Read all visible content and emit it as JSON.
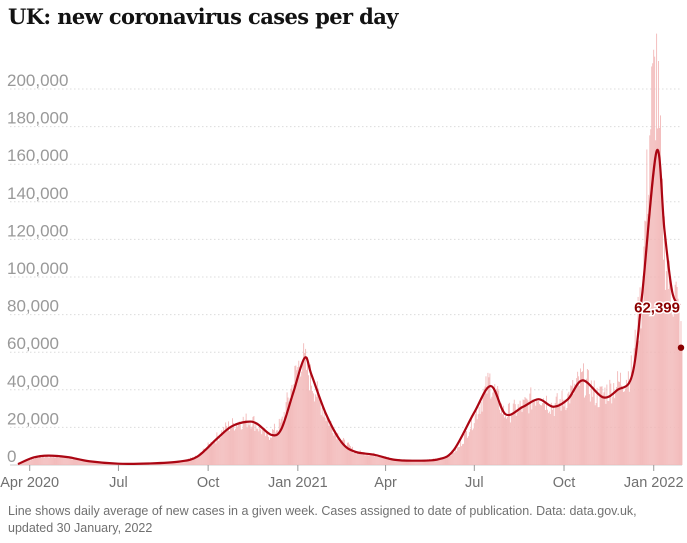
{
  "title": "UK: new coronavirus cases per day",
  "footnote": "Line shows daily average of new cases in a given week. Cases assigned to date of publication. Data: data.gov.uk, updated 30 January, 2022",
  "colors": {
    "bars": "#f2b8b8",
    "line": "#ab0613",
    "gridline": "#dcdcdc",
    "callout": "#8b0000"
  },
  "chart_data": {
    "type": "bar",
    "title": "UK: new coronavirus cases per day",
    "xlabel": "",
    "ylabel": "",
    "ylim": [
      0,
      200000
    ],
    "y_ticks": [
      0,
      20000,
      40000,
      60000,
      80000,
      100000,
      120000,
      140000,
      160000,
      180000,
      200000
    ],
    "y_tick_labels": [
      "0",
      "20,000",
      "40,000",
      "60,000",
      "80,000",
      "100,000",
      "120,000",
      "140,000",
      "160,000",
      "180,000",
      "200,000"
    ],
    "x_range": [
      "2020-03-20",
      "2022-01-30"
    ],
    "x_ticks": [
      {
        "date": "2020-04-01",
        "label": "Apr 2020"
      },
      {
        "date": "2020-07-01",
        "label": "Jul"
      },
      {
        "date": "2020-10-01",
        "label": "Oct"
      },
      {
        "date": "2021-01-01",
        "label": "Jan 2021"
      },
      {
        "date": "2021-04-01",
        "label": "Apr"
      },
      {
        "date": "2021-07-01",
        "label": "Jul"
      },
      {
        "date": "2021-10-01",
        "label": "Oct"
      },
      {
        "date": "2022-01-01",
        "label": "Jan 2022"
      }
    ],
    "grid": true,
    "series": [
      {
        "type": "bar",
        "frequency": "daily",
        "anchors": [
          {
            "date": "2020-03-20",
            "value": 700
          },
          {
            "date": "2020-04-10",
            "value": 4500
          },
          {
            "date": "2020-05-05",
            "value": 4500
          },
          {
            "date": "2020-06-10",
            "value": 1300
          },
          {
            "date": "2020-07-10",
            "value": 600
          },
          {
            "date": "2020-08-15",
            "value": 1000
          },
          {
            "date": "2020-09-05",
            "value": 2000
          },
          {
            "date": "2020-09-20",
            "value": 4500
          },
          {
            "date": "2020-10-05",
            "value": 12000
          },
          {
            "date": "2020-10-20",
            "value": 20000
          },
          {
            "date": "2020-11-01",
            "value": 23000
          },
          {
            "date": "2020-11-15",
            "value": 24000
          },
          {
            "date": "2020-12-01",
            "value": 15000
          },
          {
            "date": "2020-12-15",
            "value": 22000
          },
          {
            "date": "2020-12-28",
            "value": 45000
          },
          {
            "date": "2021-01-05",
            "value": 58000
          },
          {
            "date": "2021-01-15",
            "value": 45000
          },
          {
            "date": "2021-01-30",
            "value": 26000
          },
          {
            "date": "2021-02-15",
            "value": 13000
          },
          {
            "date": "2021-03-01",
            "value": 7000
          },
          {
            "date": "2021-03-20",
            "value": 5500
          },
          {
            "date": "2021-04-10",
            "value": 3000
          },
          {
            "date": "2021-05-10",
            "value": 2200
          },
          {
            "date": "2021-06-01",
            "value": 4000
          },
          {
            "date": "2021-06-15",
            "value": 9000
          },
          {
            "date": "2021-07-01",
            "value": 25000
          },
          {
            "date": "2021-07-17",
            "value": 45000
          },
          {
            "date": "2021-08-01",
            "value": 27000
          },
          {
            "date": "2021-08-20",
            "value": 31000
          },
          {
            "date": "2021-09-05",
            "value": 38000
          },
          {
            "date": "2021-09-20",
            "value": 31000
          },
          {
            "date": "2021-10-05",
            "value": 36000
          },
          {
            "date": "2021-10-20",
            "value": 46000
          },
          {
            "date": "2021-11-05",
            "value": 36000
          },
          {
            "date": "2021-11-25",
            "value": 43000
          },
          {
            "date": "2021-12-10",
            "value": 50000
          },
          {
            "date": "2021-12-20",
            "value": 92000
          },
          {
            "date": "2021-12-29",
            "value": 185000
          },
          {
            "date": "2022-01-04",
            "value": 210000
          },
          {
            "date": "2022-01-10",
            "value": 130000
          },
          {
            "date": "2022-01-17",
            "value": 95000
          },
          {
            "date": "2022-01-24",
            "value": 90000
          },
          {
            "date": "2022-01-30",
            "value": 62399
          }
        ]
      },
      {
        "type": "line",
        "frequency": "weekly average",
        "points": [
          {
            "date": "2020-03-20",
            "value": 500
          },
          {
            "date": "2020-04-05",
            "value": 4000
          },
          {
            "date": "2020-04-20",
            "value": 5000
          },
          {
            "date": "2020-05-10",
            "value": 4200
          },
          {
            "date": "2020-06-01",
            "value": 2000
          },
          {
            "date": "2020-07-01",
            "value": 700
          },
          {
            "date": "2020-08-01",
            "value": 800
          },
          {
            "date": "2020-09-01",
            "value": 1800
          },
          {
            "date": "2020-09-20",
            "value": 4500
          },
          {
            "date": "2020-10-10",
            "value": 14000
          },
          {
            "date": "2020-10-25",
            "value": 20500
          },
          {
            "date": "2020-11-10",
            "value": 23000
          },
          {
            "date": "2020-11-20",
            "value": 22000
          },
          {
            "date": "2020-12-05",
            "value": 16000
          },
          {
            "date": "2020-12-15",
            "value": 19000
          },
          {
            "date": "2020-12-27",
            "value": 38000
          },
          {
            "date": "2021-01-08",
            "value": 57000
          },
          {
            "date": "2021-01-15",
            "value": 48000
          },
          {
            "date": "2021-01-30",
            "value": 27000
          },
          {
            "date": "2021-02-15",
            "value": 12000
          },
          {
            "date": "2021-03-01",
            "value": 7000
          },
          {
            "date": "2021-03-20",
            "value": 5500
          },
          {
            "date": "2021-04-10",
            "value": 2800
          },
          {
            "date": "2021-05-01",
            "value": 2300
          },
          {
            "date": "2021-05-25",
            "value": 3000
          },
          {
            "date": "2021-06-10",
            "value": 8000
          },
          {
            "date": "2021-07-01",
            "value": 28000
          },
          {
            "date": "2021-07-18",
            "value": 42000
          },
          {
            "date": "2021-08-02",
            "value": 27000
          },
          {
            "date": "2021-08-20",
            "value": 31000
          },
          {
            "date": "2021-09-05",
            "value": 35000
          },
          {
            "date": "2021-09-20",
            "value": 31000
          },
          {
            "date": "2021-10-05",
            "value": 35000
          },
          {
            "date": "2021-10-20",
            "value": 45000
          },
          {
            "date": "2021-11-10",
            "value": 36000
          },
          {
            "date": "2021-11-25",
            "value": 40000
          },
          {
            "date": "2021-12-10",
            "value": 48000
          },
          {
            "date": "2021-12-20",
            "value": 90000
          },
          {
            "date": "2022-01-04",
            "value": 167000
          },
          {
            "date": "2022-01-12",
            "value": 125000
          },
          {
            "date": "2022-01-20",
            "value": 92000
          },
          {
            "date": "2022-01-28",
            "value": 85000
          }
        ]
      }
    ],
    "annotations": [
      {
        "date": "2022-01-30",
        "value": 62399,
        "label": "62,399"
      }
    ]
  }
}
